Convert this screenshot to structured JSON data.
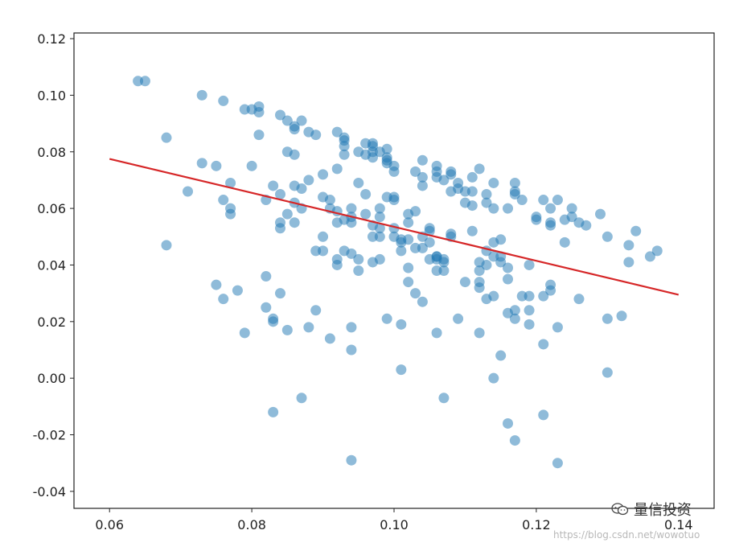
{
  "watermark": {
    "text": "量信投资",
    "icon": "wechat-icon",
    "url": "https://blog.csdn.net/wowotuo"
  },
  "chart_data": {
    "type": "scatter",
    "title": "",
    "xlabel": "",
    "ylabel": "",
    "xlim": [
      0.055,
      0.145
    ],
    "ylim": [
      -0.046,
      0.122
    ],
    "xticks": [
      0.06,
      0.08,
      0.1,
      0.12,
      0.14
    ],
    "xtick_labels": [
      "0.06",
      "0.08",
      "0.10",
      "0.12",
      "0.14"
    ],
    "yticks": [
      -0.04,
      -0.02,
      0.0,
      0.02,
      0.04,
      0.06,
      0.08,
      0.1,
      0.12
    ],
    "ytick_labels": [
      "-0.04",
      "-0.02",
      "0.00",
      "0.02",
      "0.04",
      "0.06",
      "0.08",
      "0.10",
      "0.12"
    ],
    "grid": false,
    "series": [
      {
        "type": "scatter",
        "color": "#1f77b4",
        "points": [
          [
            0.064,
            0.105
          ],
          [
            0.065,
            0.105
          ],
          [
            0.068,
            0.085
          ],
          [
            0.068,
            0.047
          ],
          [
            0.071,
            0.066
          ],
          [
            0.073,
            0.076
          ],
          [
            0.073,
            0.1
          ],
          [
            0.075,
            0.075
          ],
          [
            0.075,
            0.033
          ],
          [
            0.076,
            0.028
          ],
          [
            0.076,
            0.063
          ],
          [
            0.076,
            0.098
          ],
          [
            0.077,
            0.069
          ],
          [
            0.077,
            0.058
          ],
          [
            0.077,
            0.06
          ],
          [
            0.078,
            0.031
          ],
          [
            0.079,
            0.016
          ],
          [
            0.079,
            0.095
          ],
          [
            0.08,
            0.095
          ],
          [
            0.08,
            0.075
          ],
          [
            0.081,
            0.086
          ],
          [
            0.081,
            0.094
          ],
          [
            0.081,
            0.096
          ],
          [
            0.082,
            0.036
          ],
          [
            0.082,
            0.063
          ],
          [
            0.082,
            0.025
          ],
          [
            0.083,
            0.068
          ],
          [
            0.083,
            0.021
          ],
          [
            0.083,
            0.02
          ],
          [
            0.083,
            -0.012
          ],
          [
            0.084,
            0.055
          ],
          [
            0.084,
            0.053
          ],
          [
            0.084,
            0.03
          ],
          [
            0.084,
            0.065
          ],
          [
            0.084,
            0.093
          ],
          [
            0.085,
            0.058
          ],
          [
            0.085,
            0.091
          ],
          [
            0.085,
            0.08
          ],
          [
            0.085,
            0.017
          ],
          [
            0.086,
            0.068
          ],
          [
            0.086,
            0.062
          ],
          [
            0.086,
            0.089
          ],
          [
            0.086,
            0.079
          ],
          [
            0.086,
            0.088
          ],
          [
            0.086,
            0.055
          ],
          [
            0.087,
            0.06
          ],
          [
            0.087,
            0.067
          ],
          [
            0.087,
            -0.007
          ],
          [
            0.087,
            0.091
          ],
          [
            0.088,
            0.087
          ],
          [
            0.088,
            0.07
          ],
          [
            0.088,
            0.018
          ],
          [
            0.089,
            0.086
          ],
          [
            0.089,
            0.024
          ],
          [
            0.089,
            0.045
          ],
          [
            0.09,
            0.05
          ],
          [
            0.09,
            0.045
          ],
          [
            0.09,
            0.072
          ],
          [
            0.09,
            0.064
          ],
          [
            0.091,
            0.06
          ],
          [
            0.091,
            0.063
          ],
          [
            0.091,
            0.014
          ],
          [
            0.092,
            0.059
          ],
          [
            0.092,
            0.087
          ],
          [
            0.092,
            0.074
          ],
          [
            0.092,
            0.055
          ],
          [
            0.092,
            0.042
          ],
          [
            0.092,
            0.04
          ],
          [
            0.093,
            0.056
          ],
          [
            0.093,
            0.079
          ],
          [
            0.093,
            0.045
          ],
          [
            0.093,
            0.084
          ],
          [
            0.093,
            0.082
          ],
          [
            0.093,
            0.085
          ],
          [
            0.094,
            0.055
          ],
          [
            0.094,
            0.01
          ],
          [
            0.094,
            0.057
          ],
          [
            0.094,
            0.044
          ],
          [
            0.094,
            0.018
          ],
          [
            0.094,
            0.06
          ],
          [
            0.094,
            -0.029
          ],
          [
            0.095,
            0.069
          ],
          [
            0.095,
            0.042
          ],
          [
            0.095,
            0.038
          ],
          [
            0.095,
            0.08
          ],
          [
            0.096,
            0.065
          ],
          [
            0.096,
            0.083
          ],
          [
            0.096,
            0.079
          ],
          [
            0.096,
            0.058
          ],
          [
            0.097,
            0.082
          ],
          [
            0.097,
            0.08
          ],
          [
            0.097,
            0.05
          ],
          [
            0.097,
            0.054
          ],
          [
            0.097,
            0.041
          ],
          [
            0.097,
            0.078
          ],
          [
            0.097,
            0.083
          ],
          [
            0.098,
            0.06
          ],
          [
            0.098,
            0.042
          ],
          [
            0.098,
            0.053
          ],
          [
            0.098,
            0.057
          ],
          [
            0.098,
            0.08
          ],
          [
            0.098,
            0.05
          ],
          [
            0.099,
            0.081
          ],
          [
            0.099,
            0.077
          ],
          [
            0.099,
            0.021
          ],
          [
            0.099,
            0.078
          ],
          [
            0.099,
            0.076
          ],
          [
            0.099,
            0.064
          ],
          [
            0.1,
            0.073
          ],
          [
            0.1,
            0.075
          ],
          [
            0.1,
            0.063
          ],
          [
            0.1,
            0.064
          ],
          [
            0.1,
            0.053
          ],
          [
            0.1,
            0.05
          ],
          [
            0.101,
            0.048
          ],
          [
            0.101,
            0.049
          ],
          [
            0.101,
            0.045
          ],
          [
            0.101,
            0.003
          ],
          [
            0.101,
            0.019
          ],
          [
            0.102,
            0.039
          ],
          [
            0.102,
            0.034
          ],
          [
            0.102,
            0.055
          ],
          [
            0.102,
            0.049
          ],
          [
            0.102,
            0.058
          ],
          [
            0.103,
            0.073
          ],
          [
            0.103,
            0.059
          ],
          [
            0.103,
            0.046
          ],
          [
            0.103,
            0.03
          ],
          [
            0.104,
            0.071
          ],
          [
            0.104,
            0.046
          ],
          [
            0.104,
            0.027
          ],
          [
            0.104,
            0.068
          ],
          [
            0.104,
            0.05
          ],
          [
            0.104,
            0.077
          ],
          [
            0.105,
            0.042
          ],
          [
            0.105,
            0.048
          ],
          [
            0.105,
            0.052
          ],
          [
            0.105,
            0.053
          ],
          [
            0.106,
            0.075
          ],
          [
            0.106,
            0.073
          ],
          [
            0.106,
            0.038
          ],
          [
            0.106,
            0.016
          ],
          [
            0.106,
            0.043
          ],
          [
            0.106,
            0.042
          ],
          [
            0.106,
            0.071
          ],
          [
            0.106,
            0.043
          ],
          [
            0.107,
            0.041
          ],
          [
            0.107,
            -0.007
          ],
          [
            0.107,
            0.042
          ],
          [
            0.107,
            0.038
          ],
          [
            0.107,
            0.07
          ],
          [
            0.108,
            0.066
          ],
          [
            0.108,
            0.051
          ],
          [
            0.108,
            0.072
          ],
          [
            0.108,
            0.05
          ],
          [
            0.108,
            0.073
          ],
          [
            0.109,
            0.067
          ],
          [
            0.109,
            0.021
          ],
          [
            0.109,
            0.069
          ],
          [
            0.11,
            0.066
          ],
          [
            0.11,
            0.062
          ],
          [
            0.11,
            0.034
          ],
          [
            0.111,
            0.052
          ],
          [
            0.111,
            0.071
          ],
          [
            0.111,
            0.066
          ],
          [
            0.111,
            0.061
          ],
          [
            0.112,
            0.041
          ],
          [
            0.112,
            0.034
          ],
          [
            0.112,
            0.038
          ],
          [
            0.112,
            0.074
          ],
          [
            0.112,
            0.032
          ],
          [
            0.112,
            0.016
          ],
          [
            0.113,
            0.045
          ],
          [
            0.113,
            0.04
          ],
          [
            0.113,
            0.028
          ],
          [
            0.113,
            0.065
          ],
          [
            0.113,
            0.062
          ],
          [
            0.114,
            0.048
          ],
          [
            0.114,
            0.043
          ],
          [
            0.114,
            0.069
          ],
          [
            0.114,
            0.06
          ],
          [
            0.114,
            0.029
          ],
          [
            0.114,
            0.0
          ],
          [
            0.115,
            0.008
          ],
          [
            0.115,
            0.049
          ],
          [
            0.115,
            0.043
          ],
          [
            0.115,
            0.041
          ],
          [
            0.116,
            0.035
          ],
          [
            0.116,
            -0.016
          ],
          [
            0.116,
            0.039
          ],
          [
            0.116,
            0.023
          ],
          [
            0.116,
            0.06
          ],
          [
            0.117,
            0.065
          ],
          [
            0.117,
            0.069
          ],
          [
            0.117,
            0.066
          ],
          [
            0.117,
            0.021
          ],
          [
            0.117,
            0.024
          ],
          [
            0.117,
            -0.022
          ],
          [
            0.118,
            0.063
          ],
          [
            0.118,
            0.029
          ],
          [
            0.119,
            0.019
          ],
          [
            0.119,
            0.04
          ],
          [
            0.119,
            0.024
          ],
          [
            0.119,
            0.029
          ],
          [
            0.12,
            0.057
          ],
          [
            0.12,
            0.056
          ],
          [
            0.121,
            0.063
          ],
          [
            0.121,
            -0.013
          ],
          [
            0.121,
            0.012
          ],
          [
            0.121,
            0.029
          ],
          [
            0.122,
            0.033
          ],
          [
            0.122,
            0.055
          ],
          [
            0.122,
            0.054
          ],
          [
            0.122,
            0.06
          ],
          [
            0.122,
            0.031
          ],
          [
            0.123,
            0.018
          ],
          [
            0.123,
            -0.03
          ],
          [
            0.123,
            0.063
          ],
          [
            0.124,
            0.056
          ],
          [
            0.124,
            0.048
          ],
          [
            0.125,
            0.06
          ],
          [
            0.125,
            0.057
          ],
          [
            0.126,
            0.055
          ],
          [
            0.126,
            0.028
          ],
          [
            0.127,
            0.054
          ],
          [
            0.129,
            0.058
          ],
          [
            0.13,
            0.002
          ],
          [
            0.13,
            0.05
          ],
          [
            0.13,
            0.021
          ],
          [
            0.132,
            0.022
          ],
          [
            0.133,
            0.047
          ],
          [
            0.133,
            0.041
          ],
          [
            0.134,
            0.052
          ],
          [
            0.136,
            0.043
          ],
          [
            0.137,
            0.045
          ]
        ]
      },
      {
        "type": "line",
        "color": "#d62728",
        "x": [
          0.06,
          0.14
        ],
        "y": [
          0.0775,
          0.0295
        ]
      }
    ]
  }
}
